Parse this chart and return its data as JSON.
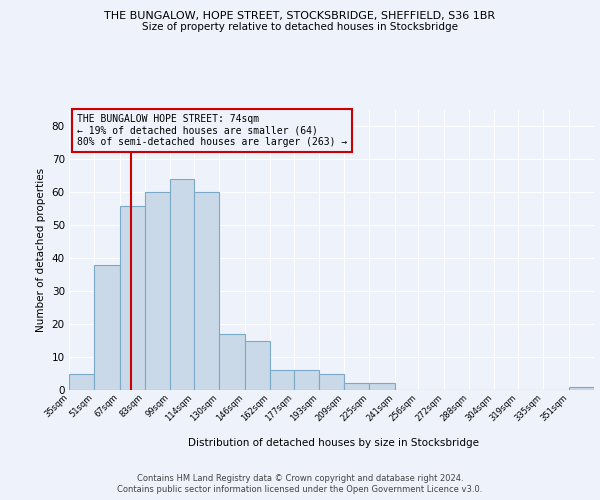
{
  "title1": "THE BUNGALOW, HOPE STREET, STOCKSBRIDGE, SHEFFIELD, S36 1BR",
  "title2": "Size of property relative to detached houses in Stocksbridge",
  "xlabel": "Distribution of detached houses by size in Stocksbridge",
  "ylabel": "Number of detached properties",
  "footnote1": "Contains HM Land Registry data © Crown copyright and database right 2024.",
  "footnote2": "Contains public sector information licensed under the Open Government Licence v3.0.",
  "annotation_line1": "THE BUNGALOW HOPE STREET: 74sqm",
  "annotation_line2": "← 19% of detached houses are smaller (64)",
  "annotation_line3": "80% of semi-detached houses are larger (263) →",
  "property_size": 74,
  "bar_color": "#c9d9e8",
  "bar_edge_color": "#7aaac8",
  "marker_line_color": "#cc0000",
  "annotation_box_color": "#cc0000",
  "categories": [
    "35sqm",
    "51sqm",
    "67sqm",
    "83sqm",
    "99sqm",
    "114sqm",
    "130sqm",
    "146sqm",
    "162sqm",
    "177sqm",
    "193sqm",
    "209sqm",
    "225sqm",
    "241sqm",
    "256sqm",
    "272sqm",
    "288sqm",
    "304sqm",
    "319sqm",
    "335sqm",
    "351sqm"
  ],
  "values": [
    5,
    38,
    56,
    60,
    64,
    60,
    17,
    15,
    6,
    6,
    5,
    2,
    2,
    0,
    0,
    0,
    0,
    0,
    0,
    0,
    1
  ],
  "bin_edges": [
    35,
    51,
    67,
    83,
    99,
    114,
    130,
    146,
    162,
    177,
    193,
    209,
    225,
    241,
    256,
    272,
    288,
    304,
    319,
    335,
    351,
    367
  ],
  "ylim": [
    0,
    85
  ],
  "yticks": [
    0,
    10,
    20,
    30,
    40,
    50,
    60,
    70,
    80
  ],
  "bg_color": "#eef2fa",
  "grid_color": "#ffffff"
}
